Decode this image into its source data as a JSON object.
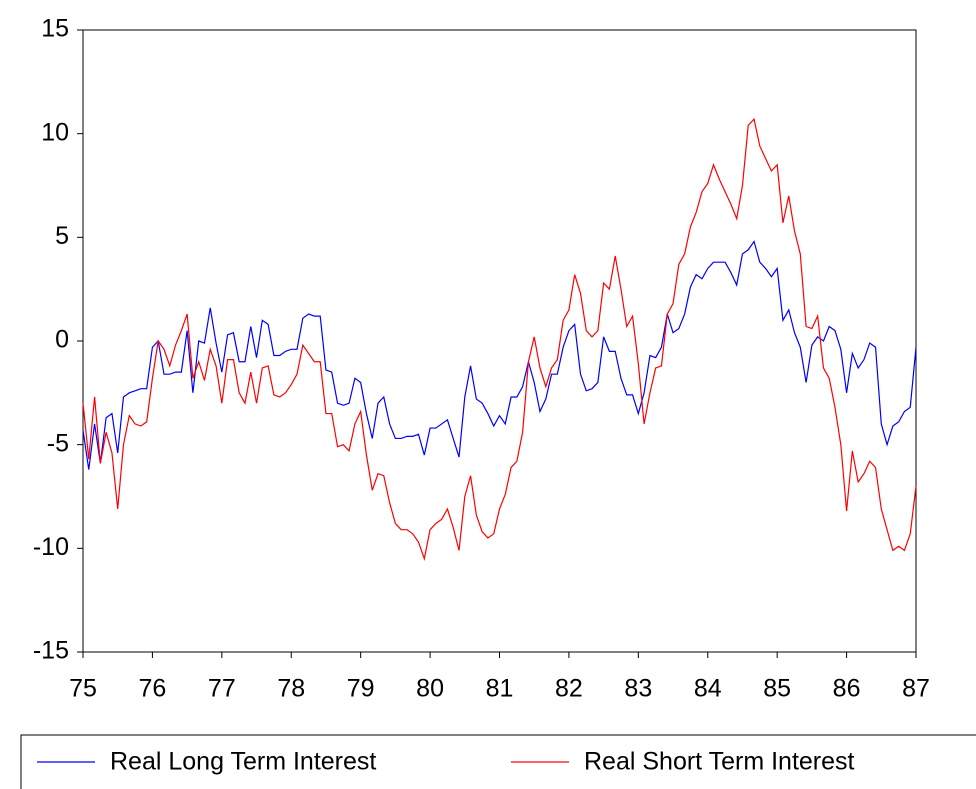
{
  "chart_data": {
    "type": "line",
    "x": [
      75,
      75.083,
      75.167,
      75.25,
      75.333,
      75.417,
      75.5,
      75.583,
      75.667,
      75.75,
      75.833,
      75.917,
      76,
      76.083,
      76.167,
      76.25,
      76.333,
      76.417,
      76.5,
      76.583,
      76.667,
      76.75,
      76.833,
      76.917,
      77,
      77.083,
      77.167,
      77.25,
      77.333,
      77.417,
      77.5,
      77.583,
      77.667,
      77.75,
      77.833,
      77.917,
      78,
      78.083,
      78.167,
      78.25,
      78.333,
      78.417,
      78.5,
      78.583,
      78.667,
      78.75,
      78.833,
      78.917,
      79,
      79.083,
      79.167,
      79.25,
      79.333,
      79.417,
      79.5,
      79.583,
      79.667,
      79.75,
      79.833,
      79.917,
      80,
      80.083,
      80.167,
      80.25,
      80.333,
      80.417,
      80.5,
      80.583,
      80.667,
      80.75,
      80.833,
      80.917,
      81,
      81.083,
      81.167,
      81.25,
      81.333,
      81.417,
      81.5,
      81.583,
      81.667,
      81.75,
      81.833,
      81.917,
      82,
      82.083,
      82.167,
      82.25,
      82.333,
      82.417,
      82.5,
      82.583,
      82.667,
      82.75,
      82.833,
      82.917,
      83,
      83.083,
      83.167,
      83.25,
      83.333,
      83.417,
      83.5,
      83.583,
      83.667,
      83.75,
      83.833,
      83.917,
      84,
      84.083,
      84.167,
      84.25,
      84.333,
      84.417,
      84.5,
      84.583,
      84.667,
      84.75,
      84.833,
      84.917,
      85,
      85.083,
      85.167,
      85.25,
      85.333,
      85.417,
      85.5,
      85.583,
      85.667,
      85.75,
      85.833,
      85.917,
      86,
      86.083,
      86.167,
      86.25,
      86.333,
      86.417,
      86.5,
      86.583,
      86.667,
      86.75,
      86.833,
      86.917,
      87
    ],
    "series": [
      {
        "name": "Real Long Term Interest",
        "color": "#0000ff",
        "values": [
          -4.3,
          -6.2,
          -4.0,
          -5.9,
          -3.7,
          -3.5,
          -5.4,
          -2.7,
          -2.5,
          -2.4,
          -2.3,
          -2.3,
          -0.3,
          0.0,
          -1.6,
          -1.6,
          -1.5,
          -1.5,
          0.5,
          -2.5,
          0.0,
          -0.1,
          1.6,
          -0.1,
          -1.5,
          0.3,
          0.4,
          -1.0,
          -1.0,
          0.7,
          -0.8,
          1.0,
          0.8,
          -0.7,
          -0.7,
          -0.5,
          -0.4,
          -0.4,
          1.1,
          1.3,
          1.2,
          1.2,
          -1.4,
          -1.5,
          -3.0,
          -3.1,
          -3.0,
          -1.8,
          -2.0,
          -3.5,
          -4.7,
          -3.0,
          -2.7,
          -4.0,
          -4.7,
          -4.7,
          -4.6,
          -4.6,
          -4.5,
          -5.5,
          -4.2,
          -4.2,
          -4.0,
          -3.8,
          -4.7,
          -5.6,
          -2.7,
          -1.2,
          -2.8,
          -3.0,
          -3.5,
          -4.1,
          -3.6,
          -4.0,
          -2.7,
          -2.7,
          -2.2,
          -1.0,
          -2.0,
          -3.4,
          -2.8,
          -1.6,
          -1.6,
          -0.3,
          0.5,
          0.8,
          -1.6,
          -2.4,
          -2.3,
          -2.0,
          0.2,
          -0.5,
          -0.5,
          -1.8,
          -2.6,
          -2.6,
          -3.5,
          -2.5,
          -0.7,
          -0.8,
          -0.3,
          1.3,
          0.4,
          0.6,
          1.3,
          2.6,
          3.2,
          3.0,
          3.5,
          3.8,
          3.8,
          3.8,
          3.3,
          2.7,
          4.2,
          4.4,
          4.8,
          3.8,
          3.5,
          3.1,
          3.5,
          1.0,
          1.5,
          0.4,
          -0.3,
          -2.0,
          -0.2,
          0.2,
          0.0,
          0.7,
          0.5,
          -0.4,
          -2.5,
          -0.6,
          -1.3,
          -0.9,
          -0.1,
          -0.3,
          -4.0,
          -5.0,
          -4.1,
          -3.9,
          -3.4,
          -3.2,
          -0.3
        ]
      },
      {
        "name": "Real Short Term Interest",
        "color": "#ff0000",
        "values": [
          -3.0,
          -5.7,
          -2.7,
          -5.9,
          -4.4,
          -5.4,
          -8.1,
          -5.0,
          -3.6,
          -4.0,
          -4.1,
          -3.9,
          -1.8,
          0.0,
          -0.4,
          -1.2,
          -0.2,
          0.5,
          1.3,
          -1.8,
          -1.0,
          -1.9,
          -0.4,
          -1.2,
          -3.0,
          -0.9,
          -0.9,
          -2.5,
          -3.0,
          -1.5,
          -3.0,
          -1.3,
          -1.2,
          -2.6,
          -2.7,
          -2.5,
          -2.1,
          -1.6,
          -0.2,
          -0.6,
          -1.0,
          -1.0,
          -3.5,
          -3.5,
          -5.1,
          -5.0,
          -5.3,
          -4.0,
          -3.4,
          -5.5,
          -7.2,
          -6.4,
          -6.5,
          -7.8,
          -8.8,
          -9.1,
          -9.1,
          -9.3,
          -9.7,
          -10.5,
          -9.1,
          -8.8,
          -8.6,
          -8.1,
          -9.0,
          -10.1,
          -7.5,
          -6.5,
          -8.4,
          -9.2,
          -9.5,
          -9.3,
          -8.1,
          -7.4,
          -6.1,
          -5.8,
          -4.4,
          -1.0,
          0.2,
          -1.3,
          -2.2,
          -1.3,
          -0.9,
          1.0,
          1.5,
          3.2,
          2.3,
          0.5,
          0.2,
          0.5,
          2.8,
          2.5,
          4.1,
          2.5,
          0.7,
          1.2,
          -1.1,
          -4.0,
          -2.5,
          -1.3,
          -1.2,
          1.3,
          1.8,
          3.7,
          4.2,
          5.5,
          6.2,
          7.2,
          7.6,
          8.5,
          7.8,
          7.2,
          6.6,
          5.9,
          7.5,
          10.4,
          10.7,
          9.4,
          8.8,
          8.2,
          8.5,
          5.7,
          7.0,
          5.3,
          4.2,
          0.7,
          0.6,
          1.2,
          -1.3,
          -1.8,
          -3.2,
          -5.0,
          -8.2,
          -5.3,
          -6.8,
          -6.4,
          -5.8,
          -6.1,
          -8.1,
          -9.1,
          -10.1,
          -9.9,
          -10.1,
          -9.3,
          -7.0
        ]
      }
    ],
    "xlim": [
      75,
      87
    ],
    "xticks": [
      75,
      76,
      77,
      78,
      79,
      80,
      81,
      82,
      83,
      84,
      85,
      86,
      87
    ],
    "ylim": [
      -15,
      15
    ],
    "yticks": [
      -15,
      -10,
      -5,
      0,
      5,
      10,
      15
    ],
    "grid": false,
    "legend": "bottom"
  }
}
